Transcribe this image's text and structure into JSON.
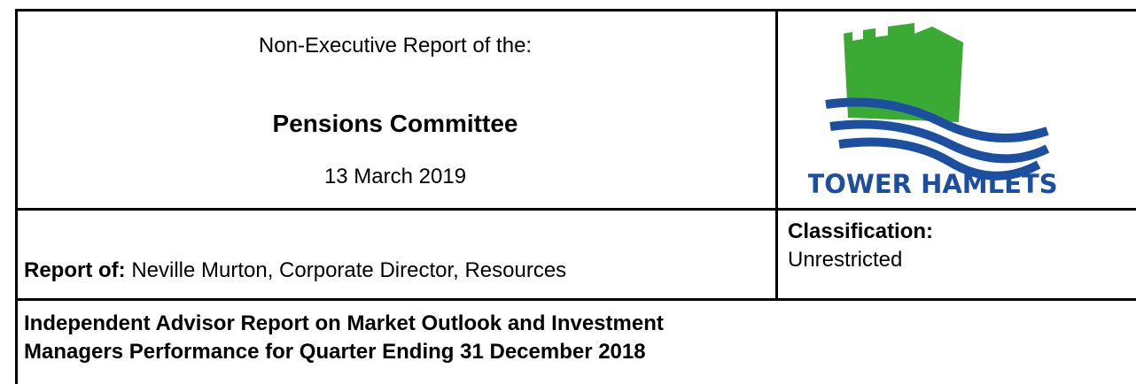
{
  "header": {
    "pre_title": "Non-Executive Report of the:",
    "title": "Pensions Committee",
    "date": "13 March 2019",
    "logo_text": "TOWER HAMLETS"
  },
  "report_of": {
    "label": "Report of:",
    "value": "Neville Murton, Corporate Director, Resources"
  },
  "classification": {
    "label": "Classification:",
    "value": "Unrestricted"
  },
  "subject": "Independent Advisor Report on Market Outlook and Investment Managers Performance for Quarter Ending 31 December 2018"
}
